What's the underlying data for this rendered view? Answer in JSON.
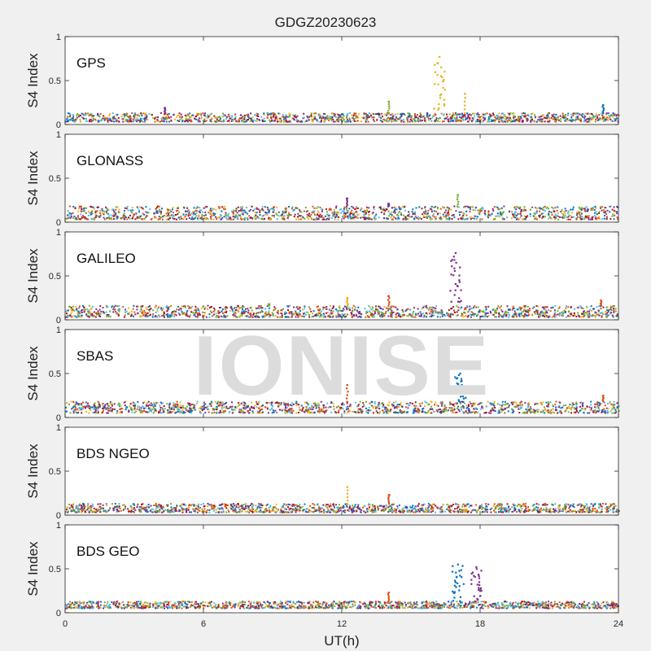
{
  "figure": {
    "title": "GDGZ20230623",
    "xlabel": "UT(h)",
    "watermark": "IONISE"
  },
  "colors": {
    "series": [
      "#0072BD",
      "#D95319",
      "#EDB120",
      "#7E2F8E",
      "#77AC30",
      "#4DBEEE",
      "#A2142F"
    ],
    "axes": "#262626",
    "panel_bg": "#ffffff",
    "figure_bg": "#f0f0f0"
  },
  "chart_data": [
    {
      "type": "scatter",
      "label": "GPS",
      "ylabel": "S4 Index",
      "xlim": [
        0,
        24
      ],
      "ylim": [
        0,
        1
      ],
      "yticks": [
        "0",
        "0.5",
        "1"
      ],
      "baseline_range": [
        0.03,
        0.13
      ],
      "spikes": [
        {
          "x": 16.2,
          "peak": 0.77,
          "series": 2
        },
        {
          "x": 17.3,
          "peak": 0.35,
          "series": 2
        },
        {
          "x": 14.0,
          "peak": 0.26,
          "series": 4
        },
        {
          "x": 23.3,
          "peak": 0.22,
          "series": 0
        },
        {
          "x": 4.3,
          "peak": 0.19,
          "series": 3
        }
      ]
    },
    {
      "type": "scatter",
      "label": "GLONASS",
      "ylabel": "S4 Index",
      "xlim": [
        0,
        24
      ],
      "ylim": [
        0,
        1
      ],
      "yticks": [
        "0",
        "0.5",
        "1"
      ],
      "baseline_range": [
        0.03,
        0.18
      ],
      "spikes": [
        {
          "x": 17.0,
          "peak": 0.31,
          "series": 4
        },
        {
          "x": 12.2,
          "peak": 0.27,
          "series": 3
        },
        {
          "x": 14.0,
          "peak": 0.21,
          "series": 3
        }
      ]
    },
    {
      "type": "scatter",
      "label": "GALILEO",
      "ylabel": "S4 Index",
      "xlim": [
        0,
        24
      ],
      "ylim": [
        0,
        1
      ],
      "yticks": [
        "0",
        "0.5",
        "1"
      ],
      "baseline_range": [
        0.03,
        0.16
      ],
      "spikes": [
        {
          "x": 16.9,
          "peak": 0.76,
          "series": 3
        },
        {
          "x": 14.0,
          "peak": 0.27,
          "series": 1
        },
        {
          "x": 12.2,
          "peak": 0.25,
          "series": 2
        },
        {
          "x": 23.2,
          "peak": 0.22,
          "series": 1
        },
        {
          "x": 8.8,
          "peak": 0.18,
          "series": 4
        }
      ]
    },
    {
      "type": "scatter",
      "label": "SBAS",
      "ylabel": "S4 Index",
      "xlim": [
        0,
        24
      ],
      "ylim": [
        0,
        1
      ],
      "yticks": [
        "0",
        "0.5",
        "1"
      ],
      "baseline_range": [
        0.05,
        0.18
      ],
      "spikes": [
        {
          "x": 17.1,
          "peak": 0.5,
          "series": 0
        },
        {
          "x": 12.2,
          "peak": 0.37,
          "series": 1
        },
        {
          "x": 23.3,
          "peak": 0.25,
          "series": 1
        }
      ]
    },
    {
      "type": "scatter",
      "label": "BDS NGEO",
      "ylabel": "S4 Index",
      "xlim": [
        0,
        24
      ],
      "ylim": [
        0,
        1
      ],
      "yticks": [
        "0",
        "0.5",
        "1"
      ],
      "baseline_range": [
        0.03,
        0.13
      ],
      "spikes": [
        {
          "x": 12.2,
          "peak": 0.32,
          "series": 2
        },
        {
          "x": 14.0,
          "peak": 0.23,
          "series": 1
        }
      ]
    },
    {
      "type": "scatter",
      "label": "BDS GEO",
      "ylabel": "S4 Index",
      "xlim": [
        0,
        24
      ],
      "ylim": [
        0,
        1
      ],
      "yticks": [
        "0",
        "0.5",
        "1"
      ],
      "xticks": [
        "0",
        "6",
        "12",
        "18",
        "24"
      ],
      "baseline_range": [
        0.05,
        0.13
      ],
      "spikes": [
        {
          "x": 17.0,
          "peak": 0.55,
          "series": 0
        },
        {
          "x": 17.8,
          "peak": 0.52,
          "series": 3
        },
        {
          "x": 14.0,
          "peak": 0.23,
          "series": 1
        }
      ]
    }
  ]
}
